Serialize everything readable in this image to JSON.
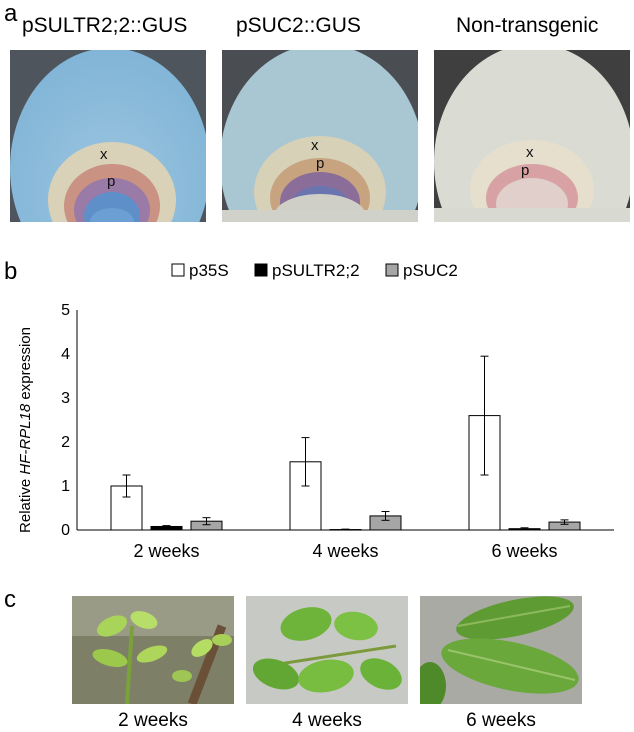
{
  "panel_a": {
    "letter": "a",
    "images": [
      {
        "title": "pSULTR2;2::GUS",
        "mark_x": "x",
        "mark_p": "p"
      },
      {
        "title": "pSUC2::GUS",
        "mark_x": "x",
        "mark_p": "p"
      },
      {
        "title": "Non-transgenic",
        "mark_x": "x",
        "mark_p": "p"
      }
    ]
  },
  "panel_b": {
    "letter": "b"
  },
  "chart_data": {
    "type": "bar",
    "categories": [
      "2 weeks",
      "4 weeks",
      "6 weeks"
    ],
    "series": [
      {
        "name": "p35S",
        "color": "#ffffff",
        "values": [
          1.0,
          1.55,
          2.6
        ],
        "errors": [
          0.25,
          0.55,
          1.35
        ]
      },
      {
        "name": "pSULTR2;2",
        "color": "#000000",
        "values": [
          0.08,
          0.01,
          0.03
        ],
        "errors": [
          0.02,
          0.01,
          0.02
        ]
      },
      {
        "name": "pSUC2",
        "color": "#a6a6a6",
        "values": [
          0.2,
          0.32,
          0.18
        ],
        "errors": [
          0.08,
          0.1,
          0.05
        ]
      }
    ],
    "ylabel_prefix": "Relative ",
    "ylabel_italic": "HF-RPL18",
    "ylabel_suffix": " expression",
    "ylim": [
      0,
      5
    ],
    "yticks": [
      "0",
      "1",
      "2",
      "3",
      "4",
      "5"
    ],
    "legend_position": "top",
    "grid": false
  },
  "panel_c": {
    "letter": "c",
    "images": [
      {
        "caption": "2 weeks"
      },
      {
        "caption": "4 weeks"
      },
      {
        "caption": "6 weeks"
      }
    ]
  }
}
